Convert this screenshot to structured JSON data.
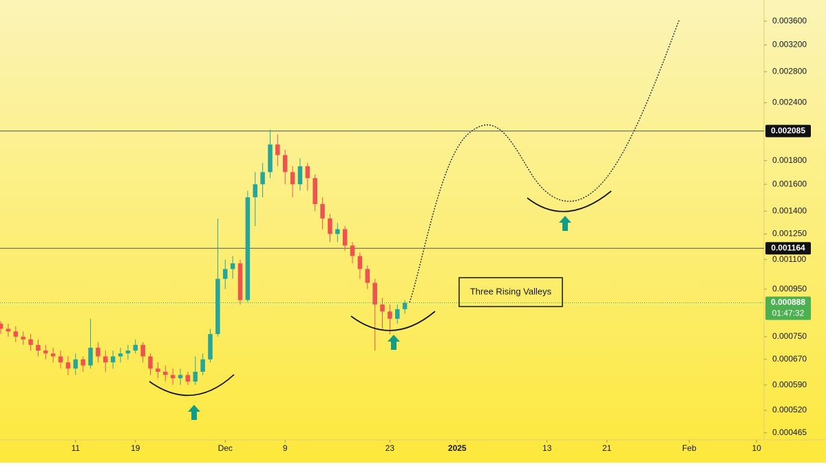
{
  "chart_data": {
    "type": "candlestick",
    "log_scale": true,
    "up_color": "#26a69a",
    "down_color": "#ef5350",
    "x": [
      0,
      1,
      2,
      3,
      4,
      5,
      6,
      7,
      8,
      9,
      10,
      11,
      12,
      13,
      14,
      15,
      16,
      17,
      18,
      19,
      20,
      21,
      22,
      23,
      24,
      25,
      26,
      27,
      28,
      29,
      30,
      31,
      32,
      33,
      34,
      35,
      36,
      37,
      38,
      39,
      40,
      41,
      42,
      43,
      44,
      45,
      46,
      47,
      48,
      49,
      50,
      51,
      52,
      53,
      54
    ],
    "open": [
      0.0008,
      0.00078,
      0.00077,
      0.00075,
      0.00074,
      0.00072,
      0.0007,
      0.00069,
      0.00068,
      0.00066,
      0.00064,
      0.00067,
      0.00065,
      0.00071,
      0.00068,
      0.00066,
      0.00068,
      0.00069,
      0.0007,
      0.00072,
      0.00068,
      0.00064,
      0.00063,
      0.00062,
      0.00061,
      0.00062,
      0.0006,
      0.00063,
      0.00067,
      0.00076,
      0.001,
      0.00105,
      0.00108,
      0.0009,
      0.0015,
      0.0016,
      0.0017,
      0.00195,
      0.00185,
      0.0017,
      0.0016,
      0.00175,
      0.00165,
      0.00145,
      0.00135,
      0.00125,
      0.00128,
      0.00118,
      0.00112,
      0.00105,
      0.00098,
      0.00088,
      0.00085,
      0.00082,
      0.00086
    ],
    "high": [
      0.00081,
      0.0008,
      0.00079,
      0.00077,
      0.00076,
      0.00074,
      0.00072,
      0.00071,
      0.0007,
      0.00068,
      0.00069,
      0.00068,
      0.00082,
      0.00073,
      0.0007,
      0.0007,
      0.00071,
      0.00072,
      0.00074,
      0.00073,
      0.00069,
      0.00066,
      0.00065,
      0.00064,
      0.00064,
      0.00063,
      0.00068,
      0.00069,
      0.00078,
      0.00135,
      0.0011,
      0.00112,
      0.0011,
      0.00155,
      0.0017,
      0.00178,
      0.0021,
      0.00205,
      0.0019,
      0.00175,
      0.00182,
      0.00178,
      0.00168,
      0.0015,
      0.00138,
      0.00132,
      0.0013,
      0.0012,
      0.00114,
      0.00107,
      0.001,
      0.00091,
      0.00088,
      0.00088,
      0.0009
    ],
    "low": [
      0.00076,
      0.00075,
      0.00073,
      0.00072,
      0.0007,
      0.00068,
      0.00067,
      0.00066,
      0.00064,
      0.00062,
      0.00062,
      0.00063,
      0.00064,
      0.00066,
      0.00063,
      0.00064,
      0.00066,
      0.00067,
      0.00069,
      0.00066,
      0.00062,
      0.00061,
      0.0006,
      0.00059,
      0.00059,
      0.00059,
      0.00059,
      0.00062,
      0.00066,
      0.00075,
      0.00095,
      0.001,
      0.00088,
      0.00089,
      0.0013,
      0.0015,
      0.00165,
      0.00175,
      0.0016,
      0.0015,
      0.00155,
      0.00155,
      0.0014,
      0.00128,
      0.0012,
      0.0012,
      0.00115,
      0.00108,
      0.001,
      0.00095,
      0.0007,
      0.00078,
      0.00076,
      0.0008,
      0.00084
    ],
    "close": [
      0.00078,
      0.00077,
      0.00075,
      0.00074,
      0.00072,
      0.0007,
      0.00069,
      0.00068,
      0.00066,
      0.00064,
      0.00067,
      0.00065,
      0.00071,
      0.00068,
      0.00066,
      0.00068,
      0.00069,
      0.0007,
      0.00072,
      0.00068,
      0.00064,
      0.00063,
      0.00062,
      0.00061,
      0.00062,
      0.0006,
      0.00063,
      0.00067,
      0.00076,
      0.001,
      0.00105,
      0.00108,
      0.0009,
      0.0015,
      0.0016,
      0.0017,
      0.00195,
      0.00185,
      0.0017,
      0.0016,
      0.00175,
      0.00165,
      0.00145,
      0.00135,
      0.00125,
      0.00128,
      0.00118,
      0.00112,
      0.00105,
      0.00098,
      0.00088,
      0.00085,
      0.00082,
      0.00086,
      0.000888
    ],
    "xlim": [
      -0.1,
      102
    ],
    "xticks": [
      {
        "value": 10,
        "label": "11"
      },
      {
        "value": 18,
        "label": "19"
      },
      {
        "value": 30,
        "label": "Dec"
      },
      {
        "value": 38,
        "label": "9"
      },
      {
        "value": 52,
        "label": "23"
      },
      {
        "value": 61,
        "label": "2025"
      },
      {
        "value": 73,
        "label": "13"
      },
      {
        "value": 81,
        "label": "21"
      },
      {
        "value": 92,
        "label": "Feb"
      },
      {
        "value": 101,
        "label": "10"
      }
    ],
    "ylim": [
      0.000449,
      0.004
    ],
    "yticks": [
      {
        "value": 0.000465,
        "label": "0.000465"
      },
      {
        "value": 0.00052,
        "label": "0.000520"
      },
      {
        "value": 0.00059,
        "label": "0.000590"
      },
      {
        "value": 0.00067,
        "label": "0.000670"
      },
      {
        "value": 0.00075,
        "label": "0.000750"
      },
      {
        "value": 0.00095,
        "label": "0.000950"
      },
      {
        "value": 0.0011,
        "label": "0.001100"
      },
      {
        "value": 0.00125,
        "label": "0.001250"
      },
      {
        "value": 0.0014,
        "label": "0.001400"
      },
      {
        "value": 0.0016,
        "label": "0.001600"
      },
      {
        "value": 0.0018,
        "label": "0.001800"
      },
      {
        "value": 0.0024,
        "label": "0.002400"
      },
      {
        "value": 0.0028,
        "label": "0.002800"
      },
      {
        "value": 0.0032,
        "label": "0.003200"
      },
      {
        "value": 0.0036,
        "label": "0.003600"
      }
    ],
    "levels": [
      {
        "value": 0.002085,
        "label": "0.002085"
      },
      {
        "value": 0.001164,
        "label": "0.001164"
      }
    ],
    "last_price": {
      "value": 0.000888,
      "label": "0.000888",
      "countdown": "01:47:32"
    },
    "annotation": "Three Rising Valleys"
  }
}
